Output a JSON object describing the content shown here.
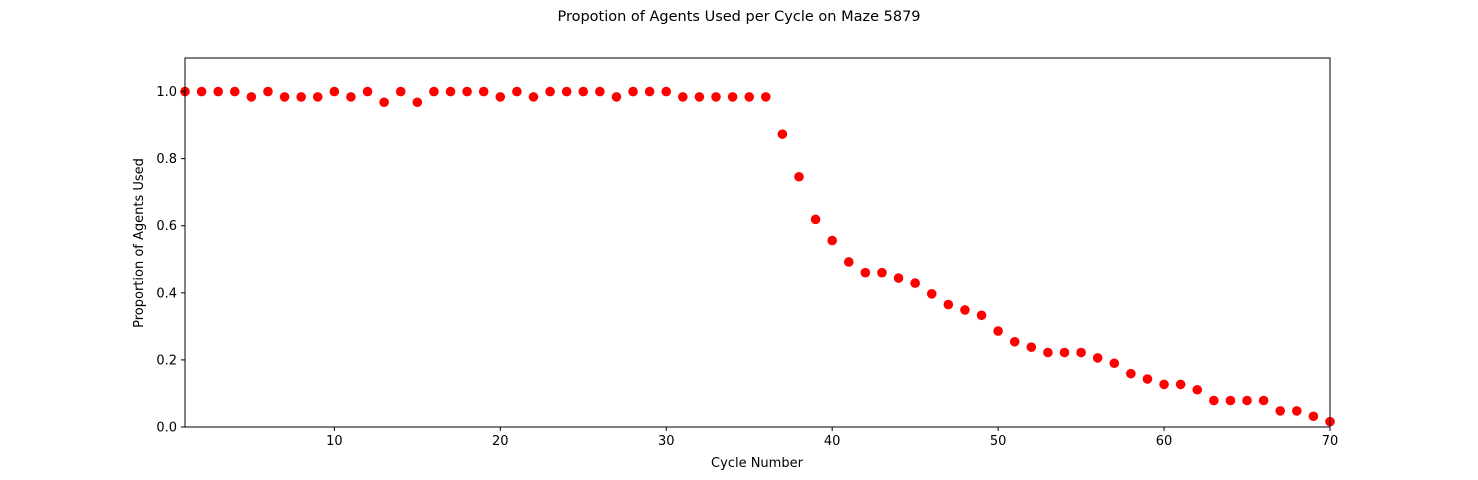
{
  "chart_data": {
    "type": "scatter",
    "title": "Propotion of Agents Used per Cycle on Maze 5879",
    "xlabel": "Cycle Number",
    "ylabel": "Proportion of Agents Used",
    "xlim": [
      1,
      70
    ],
    "ylim": [
      0,
      1.1
    ],
    "xticks": [
      10,
      20,
      30,
      40,
      50,
      60,
      70
    ],
    "yticks": [
      0.0,
      0.2,
      0.4,
      0.6,
      0.8,
      1.0
    ],
    "xtick_labels": [
      "10",
      "20",
      "30",
      "40",
      "50",
      "60",
      "70"
    ],
    "ytick_labels": [
      "0.0",
      "0.2",
      "0.4",
      "0.6",
      "0.8",
      "1.0"
    ],
    "marker_color": "#ff0000",
    "grid": false,
    "x": [
      1,
      2,
      3,
      4,
      5,
      6,
      7,
      8,
      9,
      10,
      11,
      12,
      13,
      14,
      15,
      16,
      17,
      18,
      19,
      20,
      21,
      22,
      23,
      24,
      25,
      26,
      27,
      28,
      29,
      30,
      31,
      32,
      33,
      34,
      35,
      36,
      37,
      38,
      39,
      40,
      41,
      42,
      43,
      44,
      45,
      46,
      47,
      48,
      49,
      50,
      51,
      52,
      53,
      54,
      55,
      56,
      57,
      58,
      59,
      60,
      61,
      62,
      63,
      64,
      65,
      66,
      67,
      68,
      69,
      70
    ],
    "y": [
      1.0,
      1.0,
      1.0,
      1.0,
      0.984,
      1.0,
      0.984,
      0.984,
      0.984,
      1.0,
      0.984,
      1.0,
      0.968,
      1.0,
      0.968,
      1.0,
      1.0,
      1.0,
      1.0,
      0.984,
      1.0,
      0.984,
      1.0,
      1.0,
      1.0,
      1.0,
      0.984,
      1.0,
      1.0,
      1.0,
      0.984,
      0.984,
      0.984,
      0.984,
      0.984,
      0.984,
      0.873,
      0.746,
      0.619,
      0.556,
      0.492,
      0.46,
      0.46,
      0.444,
      0.429,
      0.397,
      0.365,
      0.349,
      0.333,
      0.286,
      0.254,
      0.238,
      0.222,
      0.222,
      0.222,
      0.206,
      0.19,
      0.159,
      0.143,
      0.127,
      0.127,
      0.111,
      0.079,
      0.079,
      0.079,
      0.079,
      0.048,
      0.048,
      0.032,
      0.016
    ]
  }
}
